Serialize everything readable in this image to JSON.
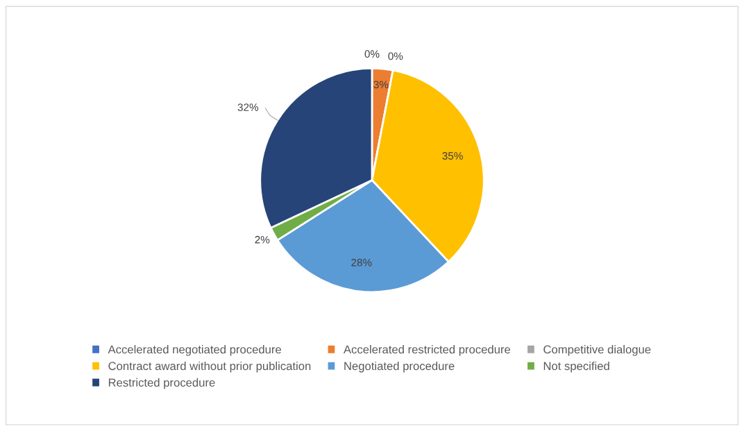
{
  "chart_data": {
    "type": "pie",
    "categories": [
      "Accelerated negotiated procedure",
      "Accelerated restricted procedure",
      "Competitive dialogue",
      "Contract award without prior publication",
      "Negotiated procedure",
      "Not specified",
      "Restricted procedure"
    ],
    "values": [
      0,
      3,
      0,
      35,
      28,
      2,
      32
    ],
    "colors": [
      "#4472c4",
      "#ed7d31",
      "#a5a5a5",
      "#ffc000",
      "#5b9bd5",
      "#70ad47",
      "#264478"
    ],
    "value_labels": [
      "0%",
      "3%",
      "0%",
      "35%",
      "28%",
      "2%",
      "32%"
    ],
    "legend": "bottom"
  }
}
